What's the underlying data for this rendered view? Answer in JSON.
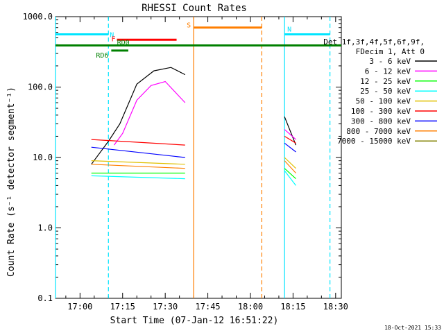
{
  "footer": {
    "date": "18-Oct-2021 15:33"
  },
  "colors": {
    "frame": "#000000",
    "cyan": "#00e5ff",
    "orange": "#ff7f00",
    "red": "#ff0000",
    "green": "#008000"
  },
  "chart_data": {
    "type": "line",
    "title": "RHESSI Count Rates",
    "xlabel": "Start Time (07-Jan-12 16:51:22)",
    "ylabel": "Count Rate (s⁻¹ detector segment⁻¹)",
    "yscale": "log",
    "xlim": [
      "16:51:22",
      "18:32:00"
    ],
    "ylim": [
      0.1,
      1000
    ],
    "x_ticks": [
      "17:00",
      "17:15",
      "17:30",
      "17:45",
      "18:00",
      "18:15",
      "18:30"
    ],
    "y_ticks": [
      "0.1",
      "1.0",
      "10.0",
      "100.0",
      "1000.0"
    ],
    "legend_header": [
      "Det 1f,3f,4f,5f,6f,9f,",
      "FDecim 1, Att 0"
    ],
    "legend_position": "right",
    "series": [
      {
        "name": "3 - 6 keV",
        "color": "#000000",
        "values": [
          [
            "17:04",
            8
          ],
          [
            "17:10",
            17
          ],
          [
            "17:14",
            30
          ],
          [
            "17:20",
            110
          ],
          [
            "17:26",
            170
          ],
          [
            "17:32",
            190
          ],
          [
            "17:37",
            150
          ],
          [
            "18:12",
            38
          ],
          [
            "18:16",
            15
          ]
        ]
      },
      {
        "name": "6 - 12 keV",
        "color": "#ff00ff",
        "values": [
          [
            "17:12",
            15
          ],
          [
            "17:15",
            22
          ],
          [
            "17:20",
            65
          ],
          [
            "17:25",
            105
          ],
          [
            "17:30",
            120
          ],
          [
            "17:37",
            60
          ],
          [
            "18:12",
            25
          ],
          [
            "18:16",
            18
          ]
        ]
      },
      {
        "name": "12 - 25 keV",
        "color": "#00ff00",
        "values": [
          [
            "17:04",
            6
          ],
          [
            "17:37",
            6
          ],
          [
            "18:12",
            7
          ],
          [
            "18:16",
            5
          ]
        ]
      },
      {
        "name": "25 - 50 keV",
        "color": "#00ffff",
        "values": [
          [
            "17:04",
            5.5
          ],
          [
            "17:37",
            5
          ],
          [
            "18:12",
            6.5
          ],
          [
            "18:16",
            4
          ]
        ]
      },
      {
        "name": "50 - 100 keV",
        "color": "#e0c000",
        "values": [
          [
            "17:04",
            9
          ],
          [
            "17:37",
            8
          ],
          [
            "18:12",
            10
          ],
          [
            "18:16",
            7
          ]
        ]
      },
      {
        "name": "100 - 300 keV",
        "color": "#ff0000",
        "values": [
          [
            "17:04",
            18
          ],
          [
            "17:37",
            15
          ],
          [
            "18:12",
            20
          ],
          [
            "18:16",
            16
          ]
        ]
      },
      {
        "name": "300 - 800 keV",
        "color": "#0000ff",
        "values": [
          [
            "17:04",
            14
          ],
          [
            "17:37",
            10
          ],
          [
            "18:12",
            16
          ],
          [
            "18:16",
            12
          ]
        ]
      },
      {
        "name": "800 - 7000 keV",
        "color": "#ff7f00",
        "values": [
          [
            "17:04",
            8
          ],
          [
            "17:37",
            7
          ],
          [
            "18:12",
            9
          ],
          [
            "18:16",
            6
          ]
        ]
      },
      {
        "name": "7000 - 15000 keV",
        "color": "#808000",
        "values": []
      }
    ],
    "flags": [
      {
        "label": "N",
        "color": "#00e5ff",
        "start": "16:51:22",
        "end": "17:10:00",
        "level": 560
      },
      {
        "label": "N",
        "color": "#00e5ff",
        "start": "18:12:00",
        "end": "18:28:00",
        "level": 560
      },
      {
        "label": "S",
        "color": "#ff7f00",
        "start": "17:40:00",
        "end": "18:04:00",
        "level": 700
      },
      {
        "label": "F",
        "color": "#ff0000",
        "start": "17:13:00",
        "end": "17:34:00",
        "level": 470
      },
      {
        "label": "RD0",
        "color": "#008000",
        "start": "16:51:22",
        "end": "18:32:00",
        "level": 390
      },
      {
        "label": "RD6",
        "color": "#008000",
        "start": "17:11:00",
        "end": "17:17:00",
        "level": 330
      }
    ],
    "vertical_lines": [
      {
        "time": "16:51:22",
        "color": "#00e5ff",
        "style": "solid"
      },
      {
        "time": "17:10:00",
        "color": "#00e5ff",
        "style": "dashed"
      },
      {
        "time": "17:40:00",
        "color": "#ff7f00",
        "style": "solid"
      },
      {
        "time": "18:04:00",
        "color": "#ff7f00",
        "style": "dashed"
      },
      {
        "time": "18:12:00",
        "color": "#00e5ff",
        "style": "solid"
      },
      {
        "time": "18:28:00",
        "color": "#00e5ff",
        "style": "dashed"
      }
    ],
    "gaps": [
      [
        "17:38:00",
        "18:10:00"
      ]
    ]
  }
}
